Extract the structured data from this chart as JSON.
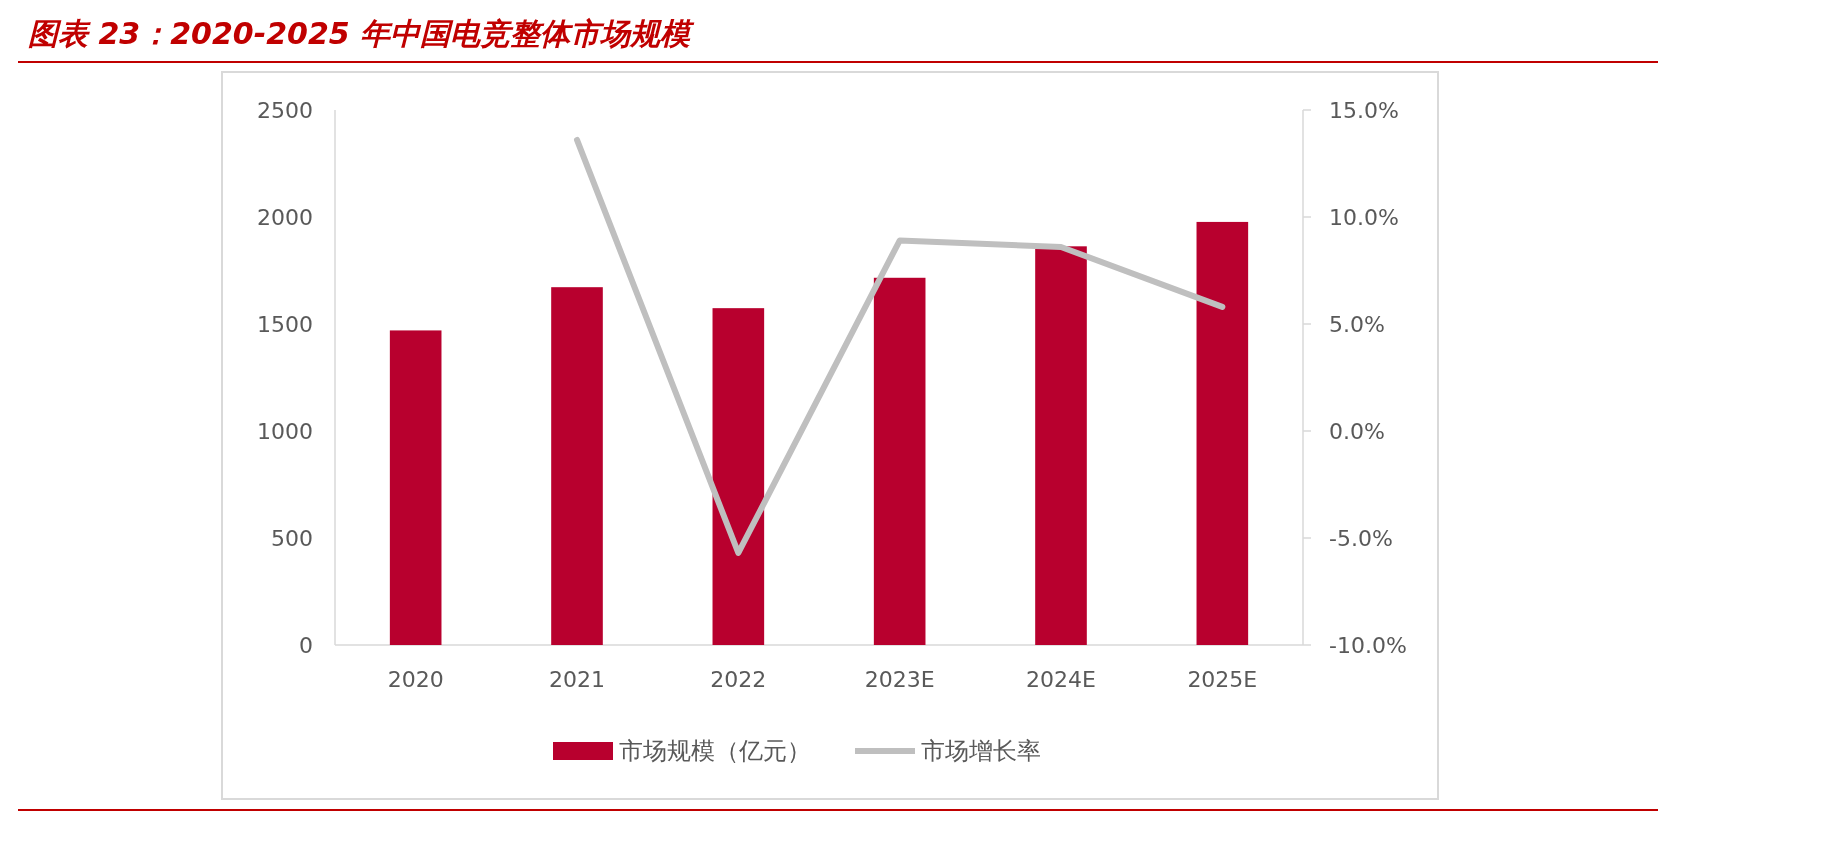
{
  "chart_data": {
    "type": "bar",
    "title": "图表 23：2020-2025 年中国电竞整体市场规模",
    "categories": [
      "2020",
      "2021",
      "2022",
      "2023E",
      "2024E",
      "2025E"
    ],
    "series": [
      {
        "name": "市场规模（亿元）",
        "color": "#b8002e",
        "values": [
          1470,
          1672,
          1574,
          1716,
          1863,
          1977
        ]
      },
      {
        "name": "市场增长率",
        "type": "line",
        "axis": "y2",
        "color": "#bfbfbf",
        "values": [
          null,
          13.6,
          -5.7,
          8.9,
          8.6,
          5.8
        ]
      }
    ],
    "ylim": [
      0,
      2500
    ],
    "yticks": [
      0,
      500,
      1000,
      1500,
      2000,
      2500
    ],
    "y2lim": [
      -10,
      15
    ],
    "y2ticks": [
      {
        "value": -10,
        "label": "-10.0%"
      },
      {
        "value": -5,
        "label": "-5.0%"
      },
      {
        "value": 0,
        "label": "0.0%"
      },
      {
        "value": 5,
        "label": "5.0%"
      },
      {
        "value": 10,
        "label": "10.0%"
      },
      {
        "value": 15,
        "label": "15.0%"
      }
    ],
    "grid": false,
    "legend": "bottom",
    "marker": "none",
    "line_style": "solid"
  }
}
